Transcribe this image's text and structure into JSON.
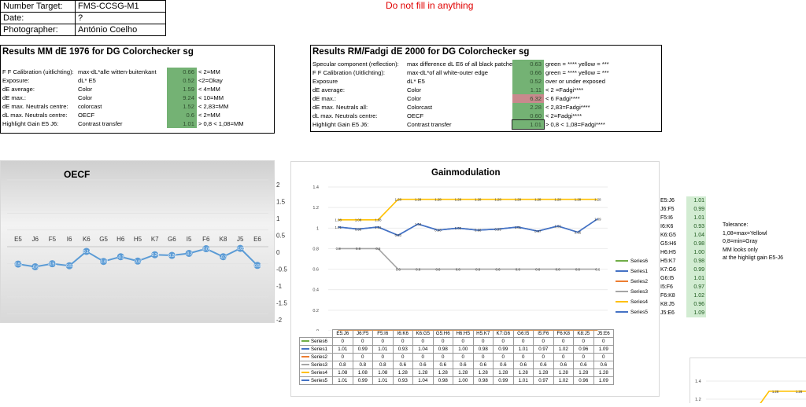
{
  "header": {
    "rows": [
      {
        "label": "Number Target:",
        "value": "FMS-CCSG-M1"
      },
      {
        "label": "Date:",
        "value": "?"
      },
      {
        "label": "Photographer:",
        "value": "António Coelho"
      }
    ],
    "notice": "Do not fill in anything"
  },
  "results_mm": {
    "title": "Results MM dE 1976 for DG Colorchecker sg",
    "rows": [
      {
        "name": "F F Calibration (uitlichting):",
        "desc": "max-dL*alle witten-buitenkant",
        "value": "0.66",
        "crit": "< 2=MM"
      },
      {
        "name": "Exposure:",
        "desc": "dL* E5",
        "value": "0.52",
        "crit": "<2=Okay"
      },
      {
        "name": "dE average:",
        "desc": "Color",
        "value": "1.59",
        "crit": "< 4=MM"
      },
      {
        "name": "dE max.:",
        "desc": "Color",
        "value": "9.24",
        "crit": "< 10=MM"
      },
      {
        "name": "dE max. Neutrals centre:",
        "desc": "colorcast",
        "value": "1.52",
        "crit": "< 2,83=MM"
      },
      {
        "name": "dL max. Neutrals centre:",
        "desc": "OECF",
        "value": "0.6",
        "crit": "< 2=MM"
      },
      {
        "name": "Highlight Gain E5 J6:",
        "desc": "Contrast transfer",
        "value": "1.01",
        "crit": "> 0,8 < 1,08=MM"
      }
    ]
  },
  "results_fadgi": {
    "title": "Results RM/Fadgi dE 2000 for DG Colorchecker sg",
    "rows": [
      {
        "name": "Specular component (reflection):",
        "desc": "max difference dL E6 of all black patche",
        "value": "0.63",
        "crit": "green = **** yellow = ***",
        "flag": ""
      },
      {
        "name": "F F Calibration (Uitlichting):",
        "desc": "max-dL*of all white-outer edge",
        "value": "0.66",
        "crit": "green = **** yellow = ***",
        "flag": ""
      },
      {
        "name": "Exposure",
        "desc": "dL* E5",
        "value": "0.52",
        "crit": "over or under exposed",
        "flag": ""
      },
      {
        "name": "dE average:",
        "desc": "Color",
        "value": "1.11",
        "crit": "< 2 =Fadgi****",
        "flag": ""
      },
      {
        "name": "dE max.:",
        "desc": "Color",
        "value": "6.32",
        "crit": "< 6 Fadgi****",
        "flag": "red"
      },
      {
        "name": "dE max. Neutrals all:",
        "desc": "Colorcast",
        "value": "2.28",
        "crit": "< 2,83=Fadgi****",
        "flag": ""
      },
      {
        "name": "dL max. Neutrals centre:",
        "desc": "OECF",
        "value": "0.60",
        "crit": "< 2=Fadgi****",
        "flag": ""
      },
      {
        "name": "Highlight Gain E5 J6:",
        "desc": "Contrast transfer",
        "value": "1.01",
        "crit": "> 0,8 < 1,08=Fadgi****",
        "flag": "sel"
      }
    ]
  },
  "oecf": {
    "title": "OECF",
    "yticks": [
      "2",
      "1.5",
      "1",
      "0.5",
      "0",
      "-0.5",
      "-1",
      "-1.5",
      "-2"
    ],
    "categories": [
      "E5",
      "J6",
      "F5",
      "I6",
      "K6",
      "G5",
      "H6",
      "H5",
      "K7",
      "G6",
      "I5",
      "F6",
      "K8",
      "J5",
      "E6"
    ],
    "values": [
      -0.52,
      -0.6,
      -0.51,
      -0.57,
      -0.14,
      -0.44,
      -0.3,
      -0.43,
      -0.24,
      -0.26,
      -0.2,
      -0.06,
      -0.3,
      -0.05,
      -0.56
    ],
    "labels": [
      "-0.52",
      "-0.6",
      "-0.51",
      "-0.57",
      "-0.14",
      "-0.44",
      "-0.3",
      "-0.43",
      "-0.24",
      "-0.26",
      "-0.2",
      "-0.06",
      "-0.3",
      "-0.05",
      "-0.56"
    ]
  },
  "gain_chart": {
    "title": "Gainmodulation",
    "yticks": [
      "1.4",
      "1.2",
      "1",
      "0.8",
      "0.6",
      "0.4",
      "0.2",
      "0"
    ],
    "categories": [
      "E5:J6",
      "J6:F5",
      "F5:I6",
      "I6:K6",
      "K6:G5",
      "G5:H6",
      "H6:H5",
      "H5:K7",
      "K7:G6",
      "G6:I5",
      "I5:F6",
      "F6:K8",
      "K8:J5",
      "J5:E6"
    ],
    "series": [
      {
        "name": "Series6",
        "color": "#70ad47",
        "values": [
          "0",
          "0",
          "0",
          "0",
          "0",
          "0",
          "0",
          "0",
          "0",
          "0",
          "0",
          "0",
          "0",
          "0"
        ]
      },
      {
        "name": "Series1",
        "color": "#4472c4",
        "values": [
          "1.01",
          "0.99",
          "1.01",
          "0.93",
          "1.04",
          "0.98",
          "1.00",
          "0.98",
          "0.99",
          "1.01",
          "0.97",
          "1.02",
          "0.96",
          "1.09"
        ]
      },
      {
        "name": "Series2",
        "color": "#ed7d31",
        "values": [
          "0",
          "0",
          "0",
          "0",
          "0",
          "0",
          "0",
          "0",
          "0",
          "0",
          "0",
          "0",
          "0",
          "0"
        ]
      },
      {
        "name": "Series3",
        "color": "#a5a5a5",
        "values": [
          "0.8",
          "0.8",
          "0.8",
          "0.6",
          "0.6",
          "0.6",
          "0.6",
          "0.6",
          "0.6",
          "0.6",
          "0.6",
          "0.6",
          "0.6",
          "0.6"
        ]
      },
      {
        "name": "Series4",
        "color": "#ffc000",
        "values": [
          "1.08",
          "1.08",
          "1.08",
          "1.28",
          "1.28",
          "1.28",
          "1.28",
          "1.28",
          "1.28",
          "1.28",
          "1.28",
          "1.28",
          "1.28",
          "1.28"
        ]
      },
      {
        "name": "Series5",
        "color": "#4472c4",
        "values": [
          "1.01",
          "0.99",
          "1.01",
          "0.93",
          "1.04",
          "0.98",
          "1.00",
          "0.98",
          "0.99",
          "1.01",
          "0.97",
          "1.02",
          "0.96",
          "1.09"
        ]
      }
    ],
    "legend_order": [
      "Series6",
      "Series1",
      "Series2",
      "Series3",
      "Series4",
      "Series5"
    ]
  },
  "gain_table": {
    "items": [
      {
        "label": "E5:J6",
        "value": "1.01"
      },
      {
        "label": "J6:F5",
        "value": "0.99"
      },
      {
        "label": "F5:I6",
        "value": "1.01"
      },
      {
        "label": "I6:K6",
        "value": "0.93"
      },
      {
        "label": "K6:G5",
        "value": "1.04"
      },
      {
        "label": "G5:H6",
        "value": "0.98"
      },
      {
        "label": "H6:H5",
        "value": "1.00"
      },
      {
        "label": "H5:K7",
        "value": "0.98"
      },
      {
        "label": "K7:G6",
        "value": "0.99"
      },
      {
        "label": "G6:I5",
        "value": "1.01"
      },
      {
        "label": "I5:F6",
        "value": "0.97"
      },
      {
        "label": "F6:K8",
        "value": "1.02"
      },
      {
        "label": "K8:J5",
        "value": "0.96"
      },
      {
        "label": "J5:E6",
        "value": "1.09"
      }
    ]
  },
  "tolerance": {
    "lines": [
      "Tolerance:",
      "1,08=max=Yellowl",
      "0,8=min=Gray",
      "MM  looks only",
      "at the highligt gain E5-J6"
    ]
  },
  "mini_chart": {
    "yticks": [
      "1.4",
      "1.2"
    ],
    "labels": [
      "1.28",
      "1.28"
    ]
  },
  "chart_data": [
    {
      "type": "line",
      "title": "OECF",
      "categories": [
        "E5",
        "J6",
        "F5",
        "I6",
        "K6",
        "G5",
        "H6",
        "H5",
        "K7",
        "G6",
        "I5",
        "F6",
        "K8",
        "J5",
        "E6"
      ],
      "series": [
        {
          "values": [
            -0.52,
            -0.6,
            -0.51,
            -0.57,
            -0.14,
            -0.44,
            -0.3,
            -0.43,
            -0.24,
            -0.26,
            -0.2,
            -0.06,
            -0.3,
            -0.05,
            -0.56
          ]
        }
      ],
      "ylim": [
        -2,
        2
      ],
      "grid": true
    },
    {
      "type": "line",
      "title": "Gainmodulation",
      "categories": [
        "E5:J6",
        "J6:F5",
        "F5:I6",
        "I6:K6",
        "K6:G5",
        "G5:H6",
        "H6:H5",
        "H5:K7",
        "K7:G6",
        "G6:I5",
        "I5:F6",
        "F6:K8",
        "K8:J5",
        "J5:E6"
      ],
      "series": [
        {
          "name": "Series6",
          "values": [
            0,
            0,
            0,
            0,
            0,
            0,
            0,
            0,
            0,
            0,
            0,
            0,
            0,
            0
          ]
        },
        {
          "name": "Series1",
          "values": [
            1.01,
            0.99,
            1.01,
            0.93,
            1.04,
            0.98,
            1.0,
            0.98,
            0.99,
            1.01,
            0.97,
            1.02,
            0.96,
            1.09
          ]
        },
        {
          "name": "Series2",
          "values": [
            0,
            0,
            0,
            0,
            0,
            0,
            0,
            0,
            0,
            0,
            0,
            0,
            0,
            0
          ]
        },
        {
          "name": "Series3",
          "values": [
            0.8,
            0.8,
            0.8,
            0.6,
            0.6,
            0.6,
            0.6,
            0.6,
            0.6,
            0.6,
            0.6,
            0.6,
            0.6,
            0.6
          ]
        },
        {
          "name": "Series4",
          "values": [
            1.08,
            1.08,
            1.08,
            1.28,
            1.28,
            1.28,
            1.28,
            1.28,
            1.28,
            1.28,
            1.28,
            1.28,
            1.28,
            1.28
          ]
        },
        {
          "name": "Series5",
          "values": [
            1.01,
            0.99,
            1.01,
            0.93,
            1.04,
            0.98,
            1.0,
            0.98,
            0.99,
            1.01,
            0.97,
            1.02,
            0.96,
            1.09
          ]
        }
      ],
      "ylim": [
        0,
        1.4
      ],
      "grid": true,
      "legend": "right"
    }
  ]
}
